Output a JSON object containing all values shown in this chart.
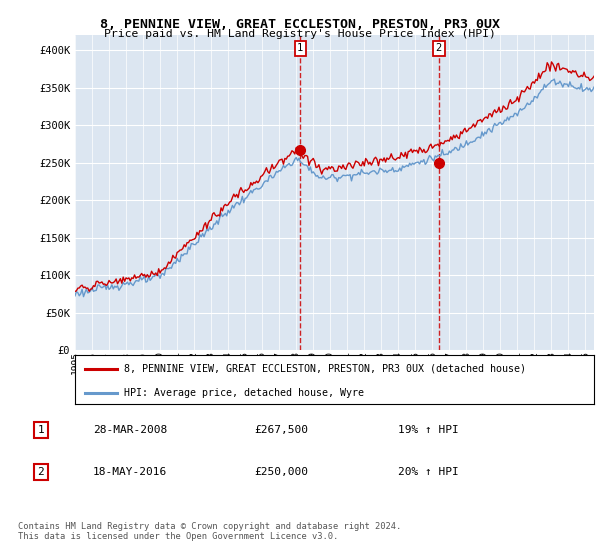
{
  "title": "8, PENNINE VIEW, GREAT ECCLESTON, PRESTON, PR3 0UX",
  "subtitle": "Price paid vs. HM Land Registry's House Price Index (HPI)",
  "ylabel_ticks": [
    "£0",
    "£50K",
    "£100K",
    "£150K",
    "£200K",
    "£250K",
    "£300K",
    "£350K",
    "£400K"
  ],
  "ytick_vals": [
    0,
    50000,
    100000,
    150000,
    200000,
    250000,
    300000,
    350000,
    400000
  ],
  "ylim": [
    0,
    420000
  ],
  "xlim_start": 1995.0,
  "xlim_end": 2025.5,
  "background_color": "#dce6f1",
  "sale1_x": 2008.24,
  "sale1_y": 267500,
  "sale2_x": 2016.38,
  "sale2_y": 250000,
  "legend_label_red": "8, PENNINE VIEW, GREAT ECCLESTON, PRESTON, PR3 0UX (detached house)",
  "legend_label_blue": "HPI: Average price, detached house, Wyre",
  "table_row1": [
    "1",
    "28-MAR-2008",
    "£267,500",
    "19% ↑ HPI"
  ],
  "table_row2": [
    "2",
    "18-MAY-2016",
    "£250,000",
    "20% ↑ HPI"
  ],
  "footer": "Contains HM Land Registry data © Crown copyright and database right 2024.\nThis data is licensed under the Open Government Licence v3.0.",
  "red_color": "#cc0000",
  "blue_color": "#6699cc"
}
